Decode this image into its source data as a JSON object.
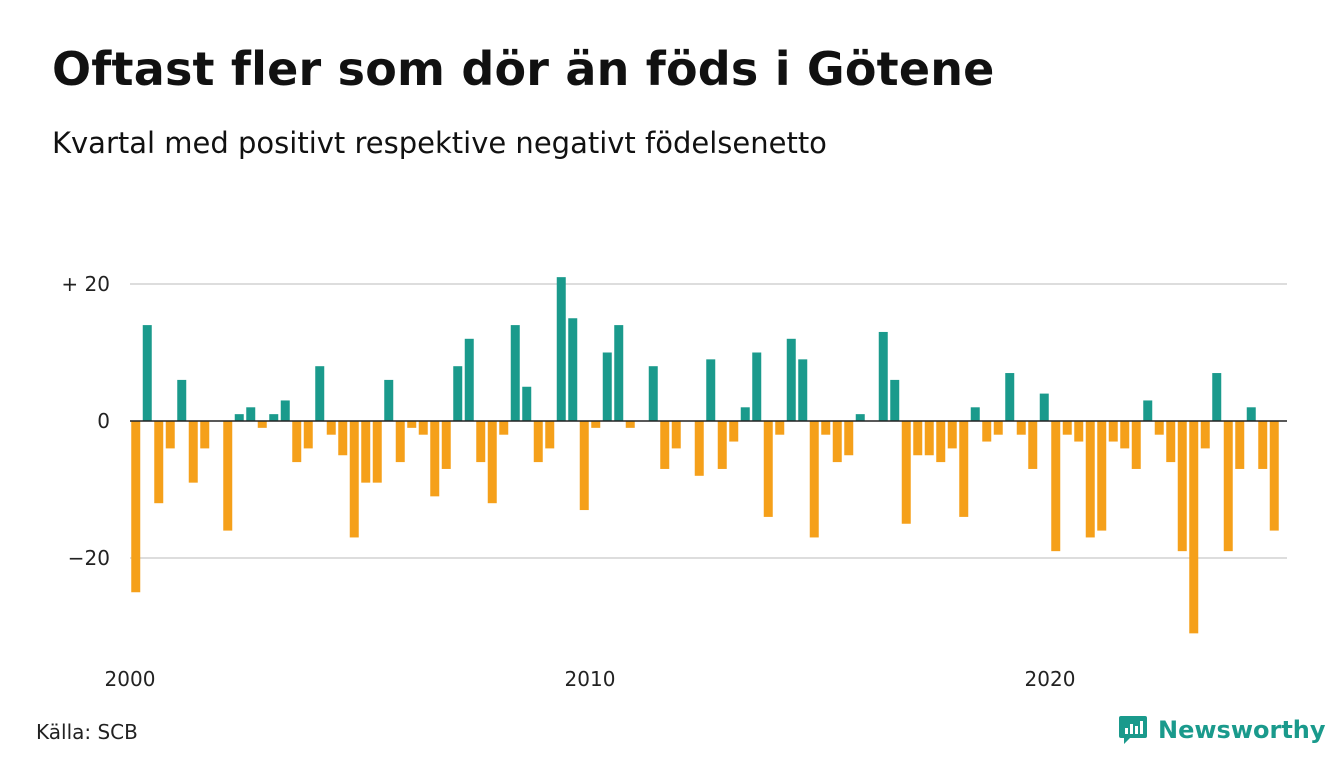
{
  "header": {
    "title": "Oftast fler som dör än föds i Götene",
    "subtitle": "Kvartal med positivt respektive negativt födelsenetto"
  },
  "footer": {
    "source": "Källa: SCB",
    "brand": "Newsworthy"
  },
  "colors": {
    "positive": "#1a9a8c",
    "negative": "#f5a01a",
    "grid": "#dddddd",
    "brand": "#1a9a8c"
  },
  "chart_data": {
    "type": "bar",
    "title": "Oftast fler som dör än föds i Götene",
    "subtitle": "Kvartal med positivt respektive negativt födelsenetto",
    "x_start": 2000,
    "periods_per_year": 4,
    "ylim": [
      -31,
      21
    ],
    "y_ticks": [
      20,
      0,
      -20
    ],
    "y_tick_labels": [
      "+ 20",
      "0",
      "−20"
    ],
    "x_ticks": [
      2000,
      2010,
      2020
    ],
    "x_tick_labels": [
      "2000",
      "2010",
      "2020"
    ],
    "grid": true,
    "values": [
      -25,
      14,
      -12,
      -4,
      6,
      -9,
      -4,
      0,
      -16,
      1,
      2,
      -1,
      1,
      3,
      -6,
      -4,
      8,
      -2,
      -5,
      -17,
      -9,
      -9,
      6,
      -6,
      -1,
      -2,
      -11,
      -7,
      8,
      12,
      -6,
      -12,
      -2,
      14,
      5,
      -6,
      -4,
      21,
      15,
      -13,
      -1,
      10,
      14,
      -1,
      0,
      8,
      -7,
      -4,
      0,
      -8,
      9,
      -7,
      -3,
      2,
      10,
      -14,
      -2,
      12,
      9,
      -17,
      -2,
      -6,
      -5,
      1,
      0,
      13,
      6,
      -15,
      -5,
      -5,
      -6,
      -4,
      -14,
      2,
      -3,
      -2,
      7,
      -2,
      -7,
      4,
      -19,
      -2,
      -3,
      -17,
      -16,
      -3,
      -4,
      -7,
      3,
      -2,
      -6,
      -19,
      -31,
      -4,
      7,
      -19,
      -7,
      2,
      -7,
      -16
    ]
  }
}
